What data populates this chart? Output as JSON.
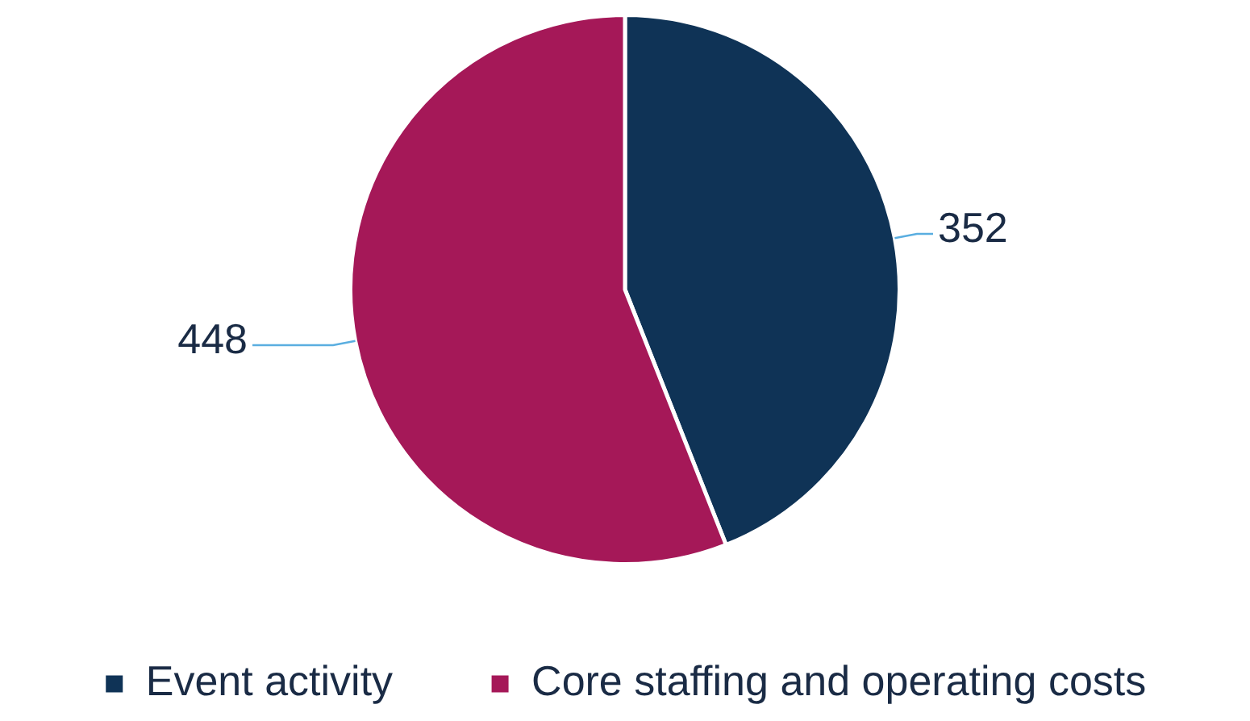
{
  "chart_data": {
    "type": "pie",
    "categories": [
      "Event activity",
      "Core staffing and operating costs"
    ],
    "values": [
      352,
      448
    ],
    "colors": [
      "#0f3356",
      "#a51858"
    ],
    "data_labels": true,
    "legend": "bottom"
  }
}
